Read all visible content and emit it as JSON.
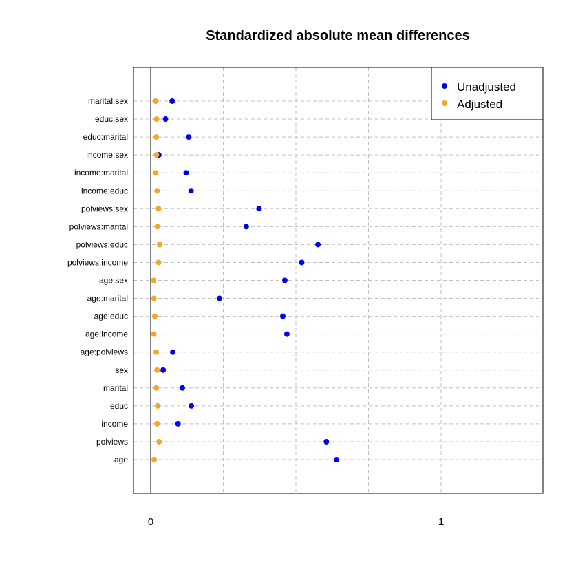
{
  "chart_data": {
    "type": "scatter",
    "title": "Standardized absolute mean differences",
    "xlabel": "",
    "ylabel": "",
    "xlim": [
      -0.06,
      1.35
    ],
    "x_ticks": [
      0,
      1
    ],
    "x_tick_labels": [
      "0",
      "1"
    ],
    "grid": true,
    "reference_line_x": 0,
    "legend_position": "top-right",
    "categories": [
      "marital:sex",
      "educ:sex",
      "educ:marital",
      "income:sex",
      "income:marital",
      "income:educ",
      "polviews:sex",
      "polviews:marital",
      "polviews:educ",
      "polviews:income",
      "age:sex",
      "age:marital",
      "age:educ",
      "age:income",
      "age:polviews",
      "sex",
      "marital",
      "educ",
      "income",
      "polviews",
      "age"
    ],
    "series": [
      {
        "name": "Unadjusted",
        "color": "#0000ee",
        "values": [
          0.074,
          0.051,
          0.131,
          0.028,
          0.122,
          0.139,
          0.373,
          0.329,
          0.576,
          0.52,
          0.462,
          0.237,
          0.455,
          0.469,
          0.076,
          0.043,
          0.109,
          0.14,
          0.094,
          0.605,
          0.64
        ]
      },
      {
        "name": "Adjusted",
        "color": "#f5a623",
        "values": [
          0.017,
          0.02,
          0.019,
          0.02,
          0.016,
          0.022,
          0.027,
          0.023,
          0.031,
          0.027,
          0.01,
          0.011,
          0.014,
          0.011,
          0.019,
          0.022,
          0.019,
          0.024,
          0.022,
          0.029,
          0.012
        ]
      }
    ]
  }
}
